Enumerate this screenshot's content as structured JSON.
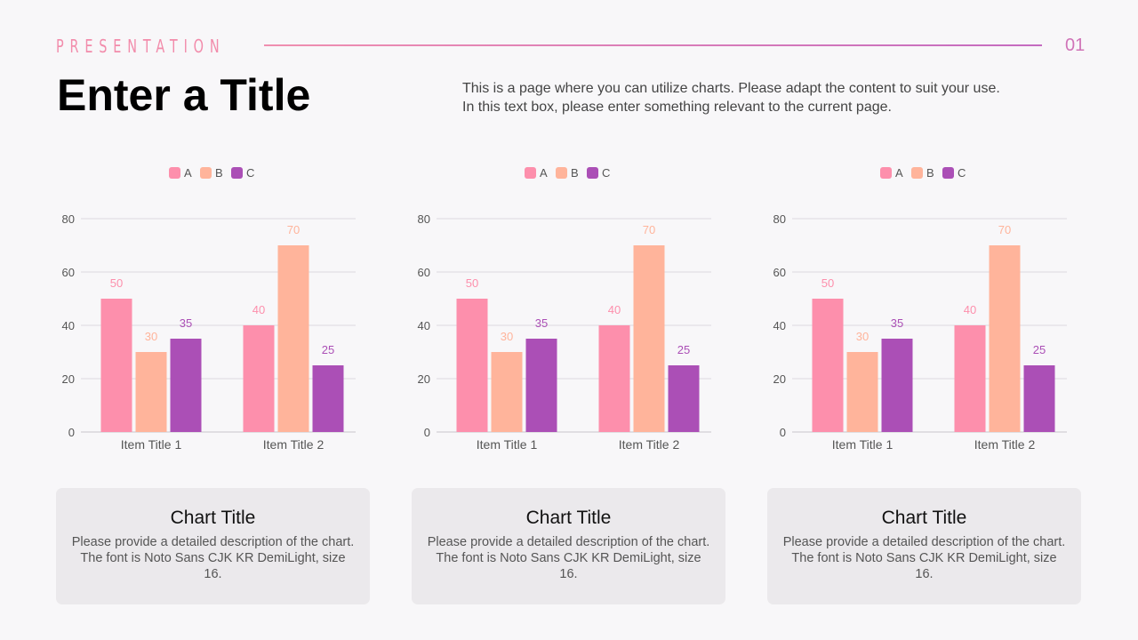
{
  "header": {
    "kicker": "PRESENTATION",
    "page_number": "01",
    "title": "Enter a Title",
    "description_lines": [
      "This is a page where you can utilize charts. Please adapt the content to suit your use.",
      "In this text box, please enter something relevant to the current page."
    ]
  },
  "colors": {
    "A": "#fd8fac",
    "B": "#ffb49b",
    "C": "#ab4fb6"
  },
  "chart_data": [
    {
      "type": "bar",
      "categories": [
        "Item Title 1",
        "Item Title 2"
      ],
      "series": [
        {
          "name": "A",
          "values": [
            50,
            40
          ]
        },
        {
          "name": "B",
          "values": [
            30,
            70
          ]
        },
        {
          "name": "C",
          "values": [
            35,
            25
          ]
        }
      ],
      "ylim": [
        0,
        80
      ],
      "yticks": [
        0,
        20,
        40,
        60,
        80
      ],
      "grid": true,
      "legend": "top",
      "data_labels": true
    },
    {
      "type": "bar",
      "categories": [
        "Item Title 1",
        "Item Title 2"
      ],
      "series": [
        {
          "name": "A",
          "values": [
            50,
            40
          ]
        },
        {
          "name": "B",
          "values": [
            30,
            70
          ]
        },
        {
          "name": "C",
          "values": [
            35,
            25
          ]
        }
      ],
      "ylim": [
        0,
        80
      ],
      "yticks": [
        0,
        20,
        40,
        60,
        80
      ],
      "grid": true,
      "legend": "top",
      "data_labels": true
    },
    {
      "type": "bar",
      "categories": [
        "Item Title 1",
        "Item Title 2"
      ],
      "series": [
        {
          "name": "A",
          "values": [
            50,
            40
          ]
        },
        {
          "name": "B",
          "values": [
            30,
            70
          ]
        },
        {
          "name": "C",
          "values": [
            35,
            25
          ]
        }
      ],
      "ylim": [
        0,
        80
      ],
      "yticks": [
        0,
        20,
        40,
        60,
        80
      ],
      "grid": true,
      "legend": "top",
      "data_labels": true
    }
  ],
  "cards": [
    {
      "title": "Chart Title",
      "description": "Please provide a detailed description of the chart. The font is Noto Sans CJK KR DemiLight, size 16."
    },
    {
      "title": "Chart Title",
      "description": "Please provide a detailed description of the chart. The font is Noto Sans CJK KR DemiLight, size 16."
    },
    {
      "title": "Chart Title",
      "description": "Please provide a detailed description of the chart. The font is Noto Sans CJK KR DemiLight, size 16."
    }
  ]
}
